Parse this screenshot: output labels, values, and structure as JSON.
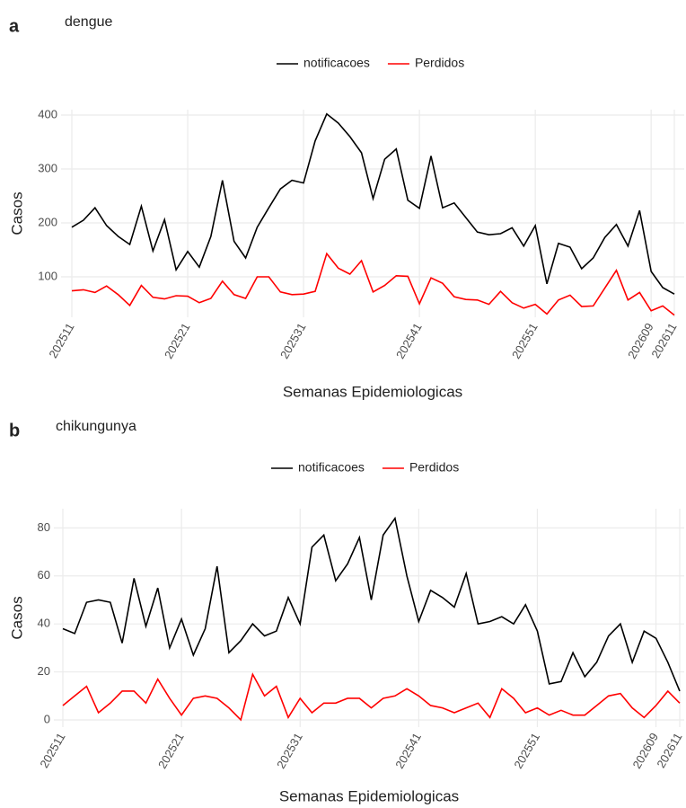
{
  "chart_data": [
    {
      "type": "line",
      "tag": "a",
      "title": "dengue",
      "xlabel": "Semanas Epidemiologicas",
      "ylabel": "Casos",
      "categories": [
        "202511",
        null,
        null,
        null,
        null,
        null,
        null,
        null,
        null,
        null,
        "202521",
        null,
        null,
        null,
        null,
        null,
        null,
        null,
        null,
        null,
        "202531",
        null,
        null,
        null,
        null,
        null,
        null,
        null,
        null,
        null,
        "202541",
        null,
        null,
        null,
        null,
        null,
        null,
        null,
        null,
        null,
        "202551",
        null,
        null,
        null,
        null,
        null,
        null,
        null,
        null,
        null,
        "202609",
        null,
        "202611"
      ],
      "series": [
        {
          "name": "notificacoes",
          "color": "#000000",
          "values": [
            192,
            205,
            228,
            195,
            175,
            160,
            231,
            148,
            206,
            113,
            147,
            118,
            175,
            279,
            166,
            135,
            192,
            228,
            263,
            279,
            274,
            352,
            402,
            385,
            360,
            330,
            245,
            318,
            337,
            242,
            227,
            324,
            228,
            237,
            210,
            183,
            178,
            180,
            191,
            157,
            195,
            87,
            162,
            155,
            115,
            135,
            173,
            197,
            157,
            223,
            110,
            80,
            68
          ]
        },
        {
          "name": "Perdidos",
          "color": "#ff0000",
          "values": [
            74,
            76,
            71,
            83,
            67,
            47,
            84,
            62,
            59,
            65,
            64,
            52,
            60,
            92,
            67,
            60,
            100,
            100,
            72,
            67,
            68,
            73,
            143,
            116,
            105,
            130,
            72,
            84,
            102,
            101,
            50,
            98,
            88,
            63,
            58,
            57,
            49,
            73,
            52,
            42,
            49,
            31,
            57,
            66,
            45,
            46,
            79,
            112,
            57,
            71,
            37,
            46,
            29
          ]
        }
      ],
      "ylim": [
        25,
        410
      ],
      "yticks": [
        100,
        200,
        300,
        400
      ],
      "grid": true,
      "legend": "top"
    },
    {
      "type": "line",
      "tag": "b",
      "title": "chikungunya",
      "xlabel": "Semanas Epidemiologicas",
      "ylabel": "Casos",
      "categories": [
        "202511",
        null,
        null,
        null,
        null,
        null,
        null,
        null,
        null,
        null,
        "202521",
        null,
        null,
        null,
        null,
        null,
        null,
        null,
        null,
        null,
        "202531",
        null,
        null,
        null,
        null,
        null,
        null,
        null,
        null,
        null,
        "202541",
        null,
        null,
        null,
        null,
        null,
        null,
        null,
        null,
        null,
        "202551",
        null,
        null,
        null,
        null,
        null,
        null,
        null,
        null,
        null,
        "202609",
        null,
        "202611"
      ],
      "series": [
        {
          "name": "notificacoes",
          "color": "#000000",
          "values": [
            38,
            36,
            49,
            50,
            49,
            32,
            59,
            39,
            55,
            30,
            42,
            27,
            38,
            64,
            28,
            33,
            40,
            35,
            37,
            51,
            40,
            72,
            77,
            58,
            65,
            76,
            50,
            77,
            84,
            60,
            41,
            54,
            51,
            47,
            61,
            40,
            41,
            43,
            40,
            48,
            37,
            15,
            16,
            28,
            18,
            24,
            35,
            40,
            24,
            37,
            34,
            24,
            12
          ]
        },
        {
          "name": "Perdidos",
          "color": "#ff0000",
          "values": [
            6,
            10,
            14,
            3,
            7,
            12,
            12,
            7,
            17,
            9,
            2,
            9,
            10,
            9,
            5,
            0,
            19,
            10,
            14,
            1,
            9,
            3,
            7,
            7,
            9,
            9,
            5,
            9,
            10,
            13,
            10,
            6,
            5,
            3,
            5,
            7,
            1,
            13,
            9,
            3,
            5,
            2,
            4,
            2,
            2,
            6,
            10,
            11,
            5,
            1,
            6,
            12,
            7
          ]
        }
      ],
      "ylim": [
        -3,
        88
      ],
      "yticks": [
        0,
        20,
        40,
        60,
        80
      ],
      "grid": true,
      "legend": "top"
    }
  ]
}
